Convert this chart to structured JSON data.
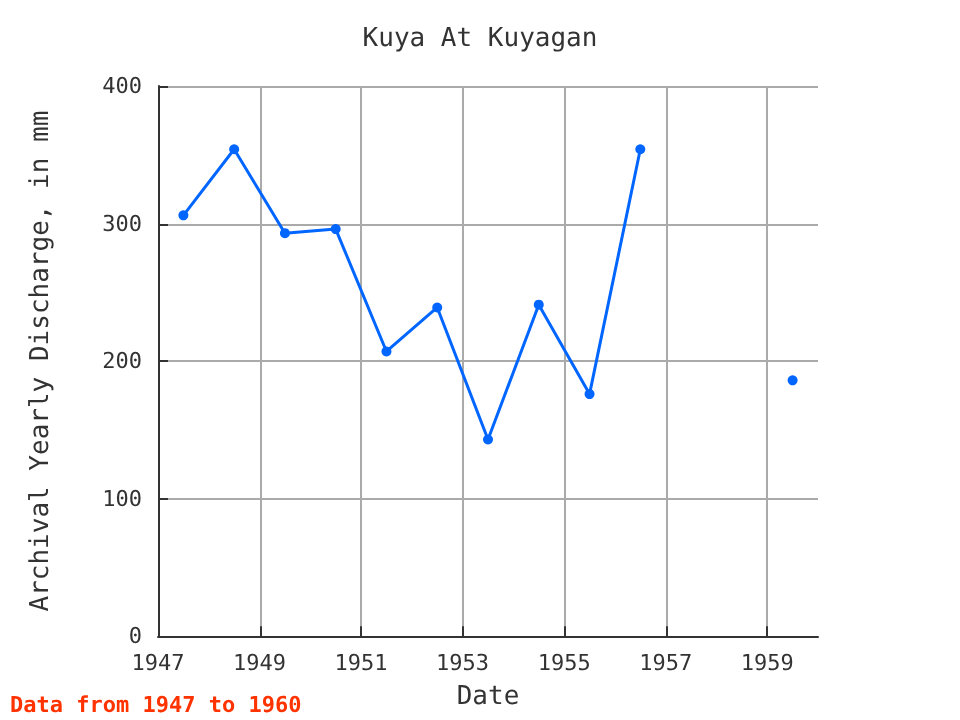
{
  "chart_data": {
    "type": "line",
    "title": "Kuya At Kuyagan",
    "xlabel": "Date",
    "ylabel": "Archival Yearly Discharge, in mm",
    "x": [
      1947.5,
      1948.5,
      1949.5,
      1950.5,
      1951.5,
      1952.5,
      1953.5,
      1954.5,
      1955.5,
      1956.5,
      1957.5,
      1958.5,
      1959.5
    ],
    "series": [
      {
        "color": "#0066ff",
        "values": [
          306,
          354,
          293,
          296,
          207,
          239,
          143,
          241,
          176,
          354,
          null,
          null,
          186
        ]
      }
    ],
    "xlim": [
      1947,
      1960
    ],
    "xticks": [
      1947,
      1949,
      1951,
      1953,
      1955,
      1957,
      1959
    ],
    "ylim": [
      0,
      400
    ],
    "yticks": [
      0,
      100,
      200,
      300,
      400
    ],
    "grid": true,
    "marker": "circle",
    "line_style": "solid",
    "annotations": [
      "Data from 1947 to 1960"
    ]
  }
}
